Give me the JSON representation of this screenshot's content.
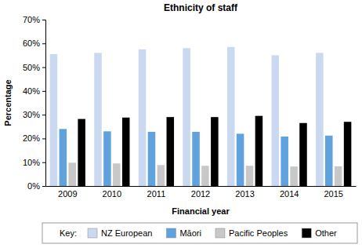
{
  "chart_data": {
    "type": "bar",
    "title": "Ethnicity of staff",
    "x_label": "Financial year",
    "y_label": "Percentage",
    "legend_title": "Key:",
    "categories": [
      "2009",
      "2010",
      "2011",
      "2012",
      "2013",
      "2014",
      "2015"
    ],
    "series": [
      {
        "name": "NZ European",
        "color": "#cad8f0",
        "values": [
          55.5,
          56,
          57.5,
          58,
          58.5,
          55,
          56
        ]
      },
      {
        "name": "Māori",
        "color": "#5fa2dd",
        "values": [
          24,
          23,
          22.8,
          22.8,
          22,
          20.8,
          21.2
        ]
      },
      {
        "name": "Pacific Peoples",
        "color": "#c8c8c8",
        "values": [
          9.8,
          9.5,
          8.8,
          8.5,
          8.5,
          8.2,
          8.3
        ]
      },
      {
        "name": "Other",
        "color": "#000000",
        "values": [
          28.2,
          28.8,
          29,
          29,
          29.5,
          26.5,
          27
        ]
      }
    ],
    "ylim": [
      0,
      70
    ],
    "yticks": [
      {
        "value": 0,
        "label": "0%"
      },
      {
        "value": 10,
        "label": "10%"
      },
      {
        "value": 20,
        "label": "20%"
      },
      {
        "value": 30,
        "label": "30%"
      },
      {
        "value": 40,
        "label": "40%"
      },
      {
        "value": 50,
        "label": "50%"
      },
      {
        "value": 60,
        "label": "60%"
      },
      {
        "value": 70,
        "label": "70%"
      }
    ],
    "grid": false,
    "legend": "bottom"
  }
}
